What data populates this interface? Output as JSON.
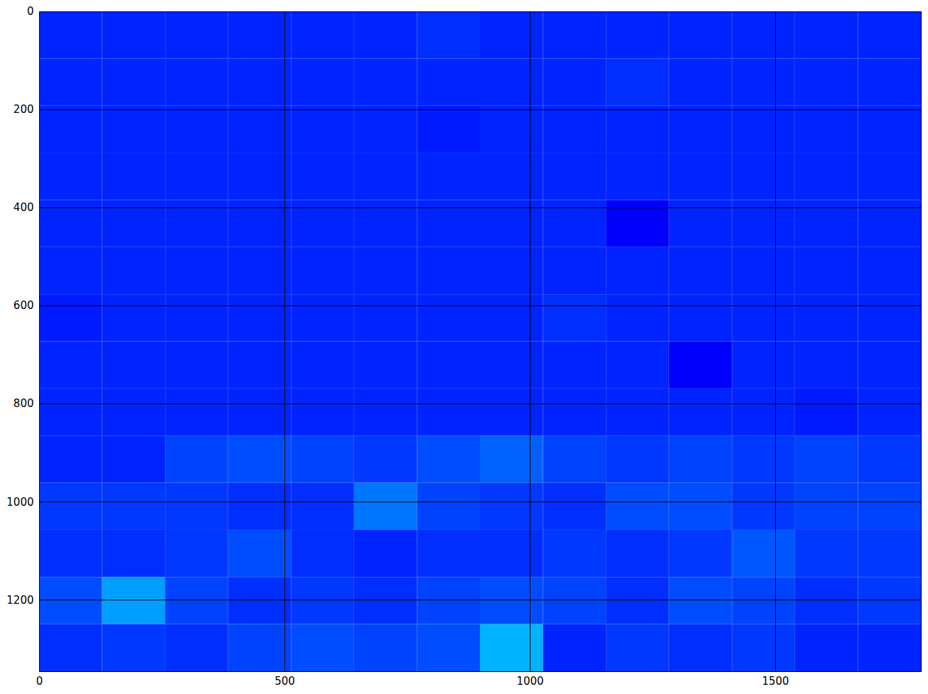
{
  "chart_data": {
    "type": "heatmap",
    "xlim": [
      0,
      1797
    ],
    "ylim": [
      1346,
      0
    ],
    "xticks": [
      0,
      500,
      1000,
      1500
    ],
    "yticks": [
      0,
      200,
      400,
      600,
      800,
      1000,
      1200
    ],
    "zlim": [
      0,
      1
    ],
    "cells": [
      [
        0.16,
        0.16,
        0.16,
        0.16,
        0.16,
        0.16,
        0.17,
        0.16,
        0.16,
        0.16,
        0.16,
        0.16,
        0.16,
        0.16
      ],
      [
        0.16,
        0.16,
        0.16,
        0.16,
        0.16,
        0.16,
        0.16,
        0.16,
        0.16,
        0.17,
        0.16,
        0.16,
        0.16,
        0.16
      ],
      [
        0.16,
        0.16,
        0.16,
        0.16,
        0.16,
        0.16,
        0.15,
        0.16,
        0.16,
        0.16,
        0.16,
        0.16,
        0.16,
        0.16
      ],
      [
        0.16,
        0.16,
        0.16,
        0.16,
        0.16,
        0.16,
        0.16,
        0.16,
        0.16,
        0.16,
        0.16,
        0.16,
        0.16,
        0.16
      ],
      [
        0.16,
        0.16,
        0.16,
        0.16,
        0.16,
        0.16,
        0.16,
        0.16,
        0.16,
        0.12,
        0.16,
        0.16,
        0.16,
        0.16
      ],
      [
        0.16,
        0.16,
        0.16,
        0.16,
        0.16,
        0.16,
        0.16,
        0.16,
        0.16,
        0.16,
        0.16,
        0.16,
        0.16,
        0.16
      ],
      [
        0.15,
        0.16,
        0.16,
        0.16,
        0.16,
        0.16,
        0.16,
        0.16,
        0.17,
        0.16,
        0.16,
        0.16,
        0.16,
        0.16
      ],
      [
        0.16,
        0.16,
        0.16,
        0.16,
        0.16,
        0.16,
        0.16,
        0.16,
        0.16,
        0.16,
        0.12,
        0.16,
        0.16,
        0.16
      ],
      [
        0.16,
        0.16,
        0.16,
        0.16,
        0.16,
        0.16,
        0.16,
        0.16,
        0.16,
        0.16,
        0.16,
        0.16,
        0.15,
        0.16
      ],
      [
        0.16,
        0.16,
        0.19,
        0.2,
        0.19,
        0.18,
        0.2,
        0.22,
        0.19,
        0.18,
        0.19,
        0.18,
        0.19,
        0.18
      ],
      [
        0.18,
        0.18,
        0.18,
        0.17,
        0.17,
        0.24,
        0.19,
        0.18,
        0.17,
        0.2,
        0.2,
        0.18,
        0.19,
        0.19
      ],
      [
        0.17,
        0.17,
        0.18,
        0.2,
        0.17,
        0.16,
        0.17,
        0.17,
        0.18,
        0.17,
        0.18,
        0.21,
        0.18,
        0.18
      ],
      [
        0.2,
        0.28,
        0.19,
        0.17,
        0.18,
        0.17,
        0.19,
        0.2,
        0.19,
        0.17,
        0.2,
        0.19,
        0.17,
        0.18
      ],
      [
        0.17,
        0.18,
        0.17,
        0.19,
        0.2,
        0.19,
        0.2,
        0.3,
        0.16,
        0.18,
        0.17,
        0.18,
        0.16,
        0.16
      ]
    ]
  }
}
